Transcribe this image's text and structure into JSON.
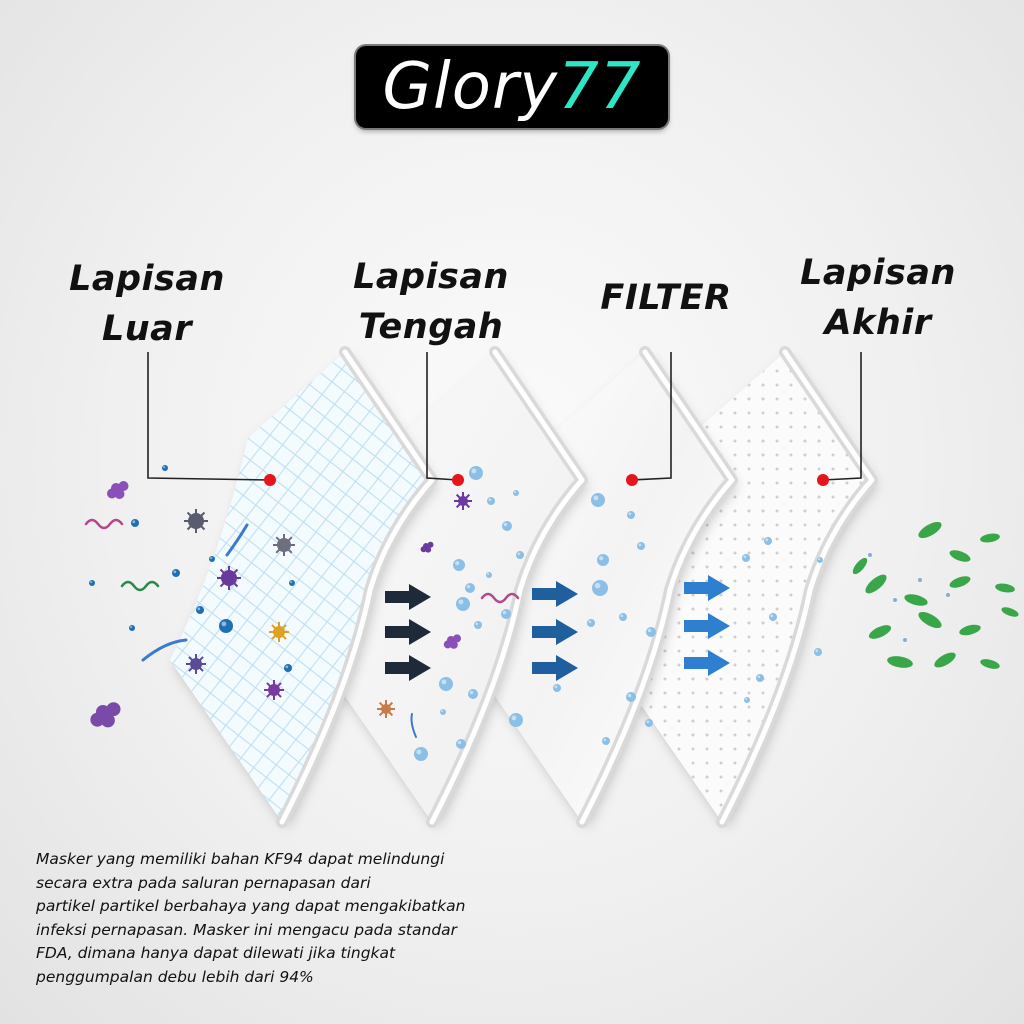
{
  "brand": {
    "name": "Glory",
    "number": "77",
    "accent_color": "#2ee6c5"
  },
  "layers": [
    {
      "id": "luar",
      "line1": "Lapisan",
      "line2": "Luar"
    },
    {
      "id": "tengah",
      "line1": "Lapisan",
      "line2": "Tengah"
    },
    {
      "id": "filter",
      "line1": "FILTER",
      "line2": ""
    },
    {
      "id": "akhir",
      "line1": "Lapisan",
      "line2": "Akhir"
    }
  ],
  "description": [
    "Masker yang memiliki bahan KF94 dapat melindungi",
    "secara extra pada saluran pernapasan dari",
    "partikel partikel berbahaya yang dapat mengakibatkan",
    "infeksi pernapasan. Masker ini mengacu pada standar",
    "FDA, dimana hanya dapat dilewati jika tingkat",
    "penggumpalan debu lebih dari 94%"
  ],
  "colors": {
    "marker": "#e8141c",
    "arrow_dark": "#1e2a3a",
    "arrow_mid": "#1f5f9e",
    "arrow_light": "#2f7fd0",
    "leaf": "#3aa64a",
    "mesh": "#bfe0f0"
  },
  "icons": [
    "virus-icon",
    "bacteria-icon",
    "particle-icon",
    "arrow-icon",
    "leaf-icon"
  ]
}
